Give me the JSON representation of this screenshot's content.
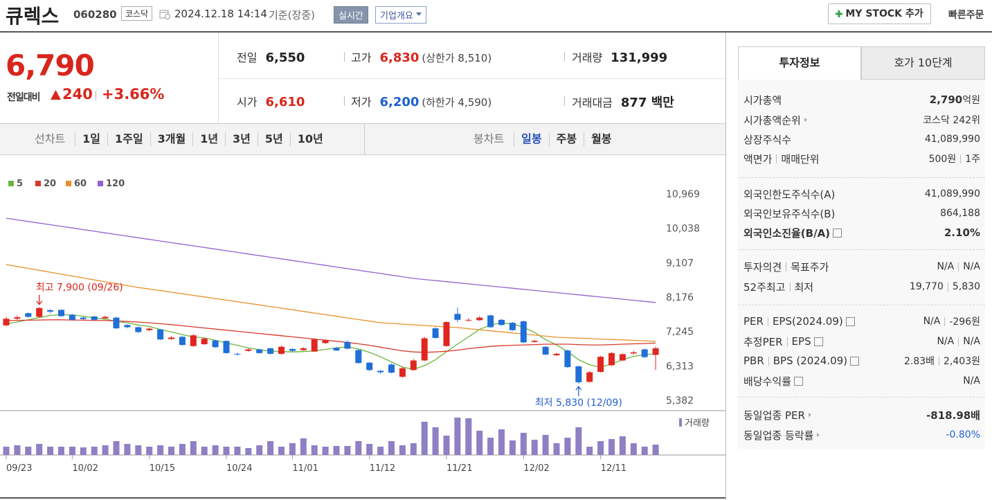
{
  "header": {
    "name": "큐렉스",
    "code": "060280",
    "market": "코스닥",
    "datetime": "2024.12.18 14:14",
    "basis": "기준(장중)",
    "realtime_button": "실시간",
    "overview_button": "기업개요",
    "mystock_button": "MY STOCK 추가",
    "quick_order": "빠른주문"
  },
  "price": {
    "current": "6,790",
    "change_label": "전일대비",
    "change": "240",
    "change_rate": "+3.66%"
  },
  "summary": [
    [
      {
        "label": "전일",
        "value": "6,550"
      },
      {
        "label": "고가",
        "value": "6,830",
        "limit": "(상한가 8,510)"
      },
      {
        "label": "거래량",
        "value": "131,999"
      }
    ],
    [
      {
        "label": "시가",
        "value": "6,610"
      },
      {
        "label": "저가",
        "value": "6,200",
        "limit": "(하한가 4,590)"
      },
      {
        "label": "거래대금",
        "value": "877 백만"
      }
    ]
  ],
  "tabs": {
    "line_chart": "선차트",
    "line_periods": [
      "1일",
      "1주일",
      "3개월",
      "1년",
      "3년",
      "5년",
      "10년"
    ],
    "candle_chart": "봉차트",
    "candle_periods": [
      "일봉",
      "주봉",
      "월봉"
    ]
  },
  "side": {
    "tabs": [
      "투자정보",
      "호가 10단계"
    ],
    "rows": [
      {
        "label": [
          "시가총액"
        ],
        "value": [
          "2,790",
          "억원"
        ]
      },
      {
        "label": [
          "시가총액순위"
        ],
        "value": [
          "코스닥 242위"
        ]
      },
      {
        "label": [
          "상장주식수"
        ],
        "value": [
          "41,089,990"
        ]
      },
      {
        "label": [
          "액면가",
          "매매단위"
        ],
        "value": [
          "500원",
          "1주"
        ]
      },
      {
        "label": [
          "외국인한도주식수(A)"
        ],
        "value": [
          "41,089,990"
        ]
      },
      {
        "label": [
          "외국인보유주식수(B)"
        ],
        "value": [
          "864,188"
        ]
      },
      {
        "label": [
          "외국인소진율(B/A)"
        ],
        "value": [
          "2.10%"
        ]
      },
      {
        "label": [
          "투자의견",
          "목표주가"
        ],
        "value": [
          "N/A",
          "N/A"
        ]
      },
      {
        "label": [
          "52주최고",
          "최저"
        ],
        "value": [
          "19,770",
          "5,830"
        ]
      },
      {
        "label": [
          "PER",
          "EPS(2024.09)"
        ],
        "value": [
          "N/A",
          "-296원"
        ]
      },
      {
        "label": [
          "추정PER",
          "EPS"
        ],
        "value": [
          "N/A",
          "N/A"
        ]
      },
      {
        "label": [
          "PBR",
          "BPS (2024.09)"
        ],
        "value": [
          "2.83배",
          "2,403원"
        ]
      },
      {
        "label": [
          "배당수익률"
        ],
        "value": [
          "N/A"
        ]
      },
      {
        "label": [
          "동일업종 PER"
        ],
        "value": [
          "-818.98배"
        ]
      },
      {
        "label": [
          "동일업종 등락률"
        ],
        "value": [
          "-0.80%"
        ]
      }
    ]
  },
  "chart_data": {
    "type": "candlestick",
    "up_color": "#e0261f",
    "down_color": "#1f6fd8",
    "categories": [
      "09/23",
      null,
      null,
      null,
      null,
      null,
      "10/02",
      null,
      null,
      null,
      null,
      null,
      null,
      "10/15",
      null,
      null,
      null,
      null,
      null,
      null,
      "10/24",
      null,
      null,
      null,
      null,
      null,
      "11/01",
      null,
      null,
      null,
      null,
      null,
      null,
      "11/12",
      null,
      null,
      null,
      null,
      null,
      null,
      "11/21",
      null,
      null,
      null,
      null,
      null,
      null,
      "12/02",
      null,
      null,
      null,
      null,
      null,
      null,
      "12/11",
      null,
      null,
      null,
      null,
      null
    ],
    "open": [
      7410,
      7590,
      7740,
      7640,
      7820,
      7830,
      7700,
      7620,
      7650,
      7600,
      7620,
      7420,
      7360,
      7280,
      7300,
      7040,
      7100,
      6850,
      6900,
      7000,
      6990,
      6640,
      6720,
      6760,
      6790,
      6640,
      6770,
      6740,
      6700,
      6930,
      6800,
      6960,
      6740,
      6400,
      6180,
      6350,
      6020,
      6200,
      6460,
      7330,
      6850,
      7720,
      7540,
      7550,
      7680,
      7560,
      7480,
      7520,
      6960,
      6830,
      6600,
      6730,
      6300,
      5880,
      6150,
      6330,
      6460,
      6650,
      6760,
      6610
    ],
    "high": [
      7640,
      7680,
      7760,
      7900,
      7850,
      7840,
      7720,
      7650,
      7670,
      7670,
      7640,
      7440,
      7380,
      7350,
      7310,
      7120,
      7120,
      7170,
      7080,
      7020,
      7000,
      6670,
      6790,
      6780,
      6810,
      6860,
      6790,
      6820,
      7060,
      7030,
      6830,
      7000,
      6760,
      6420,
      6200,
      6380,
      6290,
      6500,
      7100,
      7360,
      7520,
      7890,
      7600,
      7660,
      7700,
      7580,
      7500,
      7540,
      7020,
      6850,
      6670,
      6750,
      6320,
      6170,
      6590,
      6690,
      6660,
      6720,
      6780,
      6830
    ],
    "low": [
      7380,
      7560,
      7620,
      7620,
      7740,
      7640,
      7540,
      7550,
      7530,
      7580,
      7310,
      7330,
      7200,
      7250,
      7010,
      7020,
      6860,
      6830,
      6880,
      6800,
      6640,
      6590,
      6690,
      6640,
      6620,
      6620,
      6700,
      6720,
      6690,
      6910,
      6710,
      6760,
      6370,
      6170,
      6100,
      6110,
      5990,
      6180,
      6440,
      7050,
      6830,
      7500,
      7510,
      7530,
      7340,
      7400,
      7260,
      6930,
      6940,
      6600,
      6580,
      6260,
      5830,
      5860,
      6130,
      6310,
      6440,
      6620,
      6530,
      6200
    ],
    "close": [
      7590,
      7630,
      7640,
      7880,
      7780,
      7660,
      7560,
      7580,
      7560,
      7640,
      7330,
      7360,
      7230,
      7320,
      7030,
      7080,
      6880,
      7140,
      7050,
      6820,
      6660,
      6620,
      6760,
      6660,
      6640,
      6830,
      6720,
      6790,
      7030,
      7000,
      6730,
      6780,
      6390,
      6200,
      6140,
      6130,
      6250,
      6460,
      7060,
      7070,
      7500,
      7560,
      7560,
      7620,
      7360,
      7420,
      7280,
      6950,
      6990,
      6620,
      6640,
      6280,
      5870,
      6140,
      6560,
      6660,
      6630,
      6680,
      6550,
      6790
    ],
    "series": [
      {
        "name": "5",
        "color": "#6cb33e",
        "values": [
          7450,
          7500,
          7560,
          7620,
          7680,
          7700,
          7690,
          7660,
          7610,
          7580,
          7520,
          7480,
          7420,
          7380,
          7300,
          7230,
          7160,
          7100,
          7070,
          7010,
          6930,
          6870,
          6800,
          6750,
          6710,
          6700,
          6690,
          6700,
          6720,
          6760,
          6800,
          6830,
          6770,
          6680,
          6560,
          6420,
          6280,
          6220,
          6320,
          6480,
          6700,
          6900,
          7100,
          7300,
          7420,
          7480,
          7450,
          7360,
          7220,
          7020,
          6880,
          6700,
          6480,
          6340,
          6280,
          6360,
          6480,
          6570,
          6620,
          6640
        ]
      },
      {
        "name": "20",
        "color": "#d8392b",
        "values": [
          7540,
          7545,
          7550,
          7555,
          7560,
          7560,
          7555,
          7550,
          7545,
          7540,
          7530,
          7515,
          7500,
          7480,
          7455,
          7430,
          7400,
          7370,
          7340,
          7310,
          7280,
          7250,
          7220,
          7190,
          7160,
          7130,
          7100,
          7070,
          7040,
          7010,
          6980,
          6950,
          6910,
          6870,
          6820,
          6770,
          6720,
          6690,
          6680,
          6690,
          6710,
          6740,
          6780,
          6810,
          6840,
          6860,
          6870,
          6880,
          6890,
          6900,
          6900,
          6900,
          6890,
          6880,
          6880,
          6890,
          6900,
          6910,
          6920,
          6930
        ]
      },
      {
        "name": "60",
        "color": "#e8912a",
        "values": [
          9057,
          9005,
          8953,
          8901,
          8849,
          8797,
          8745,
          8693,
          8641,
          8589,
          8537,
          8485,
          8437,
          8394,
          8351,
          8308,
          8265,
          8222,
          8179,
          8136,
          8093,
          8050,
          8007,
          7964,
          7921,
          7876,
          7832,
          7788,
          7744,
          7700,
          7656,
          7612,
          7568,
          7524,
          7482,
          7463,
          7444,
          7425,
          7406,
          7387,
          7368,
          7350,
          7321,
          7292,
          7263,
          7234,
          7205,
          7176,
          7147,
          7118,
          7088,
          7076,
          7064,
          7052,
          7040,
          7028,
          7016,
          7004,
          6992,
          6976
        ]
      },
      {
        "name": "120",
        "color": "#9460d0",
        "values": [
          10310,
          10266,
          10222,
          10178,
          10134,
          10090,
          10046,
          10002,
          9958,
          9914,
          9870,
          9826,
          9782,
          9738,
          9694,
          9650,
          9606,
          9562,
          9518,
          9474,
          9430,
          9386,
          9342,
          9298,
          9254,
          9210,
          9166,
          9122,
          9078,
          9034,
          8990,
          8946,
          8902,
          8858,
          8814,
          8770,
          8726,
          8682,
          8652,
          8623,
          8593,
          8563,
          8534,
          8504,
          8474,
          8445,
          8415,
          8386,
          8356,
          8326,
          8297,
          8267,
          8238,
          8208,
          8178,
          8149,
          8119,
          8090,
          8060,
          8030
        ]
      }
    ],
    "volume": {
      "name": "거래량",
      "color": "#8f7fc4",
      "values": [
        105600,
        123200,
        105600,
        140800,
        105600,
        105600,
        105600,
        96800,
        105600,
        123200,
        176000,
        140800,
        123200,
        105600,
        123200,
        105600,
        140800,
        176000,
        105600,
        123200,
        105600,
        105600,
        88000,
        123200,
        176000,
        105600,
        149600,
        211200,
        123200,
        105600,
        114400,
        114400,
        176000,
        140800,
        105600,
        176000,
        123200,
        149600,
        422400,
        352000,
        246400,
        475200,
        466400,
        308000,
        220000,
        325600,
        184800,
        281600,
        193600,
        255200,
        149600,
        220000,
        352000,
        105600,
        176000,
        202400,
        237600,
        149600,
        105600,
        131999
      ]
    },
    "annotations": {
      "high": "최고 7,900 (09/26)",
      "low": "최저 5,830 (12/09)"
    },
    "ylim": [
      5382,
      10969
    ],
    "yticks": [
      {
        "value": 5382,
        "label": "5,382"
      },
      {
        "value": 6313,
        "label": "6,313"
      },
      {
        "value": 7245,
        "label": "7,245"
      },
      {
        "value": 8176,
        "label": "8,176"
      },
      {
        "value": 9107,
        "label": "9,107"
      },
      {
        "value": 10038,
        "label": "10,038"
      },
      {
        "value": 10969,
        "label": "10,969"
      }
    ],
    "grid": false
  }
}
